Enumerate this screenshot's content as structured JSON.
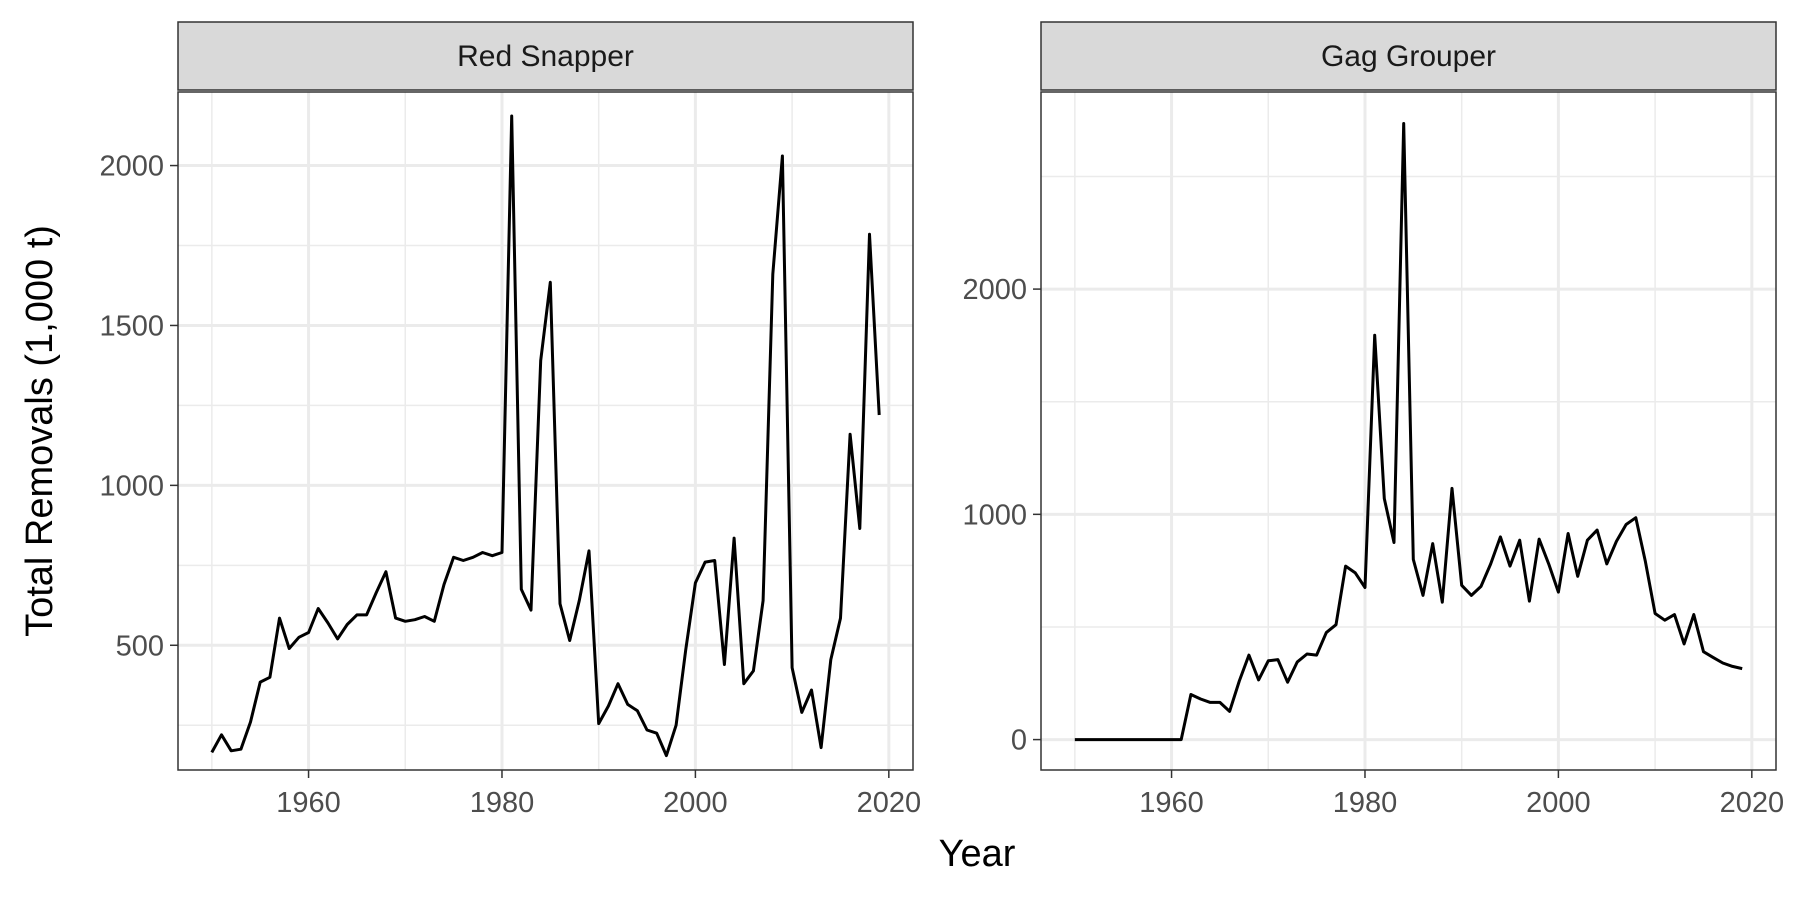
{
  "chart_data": {
    "type": "line",
    "xlabel": "Year",
    "ylabel": "Total Removals (1,000 t)",
    "grid": true,
    "facets": [
      {
        "title": "Red Snapper",
        "xlim": [
          1946.5,
          2022.5
        ],
        "ylim": [
          110,
          2230
        ],
        "x_ticks": [
          1960,
          1980,
          2000,
          2020
        ],
        "y_ticks": [
          500,
          1000,
          1500,
          2000
        ],
        "series": [
          {
            "x": [
              1950,
              1951,
              1952,
              1953,
              1954,
              1955,
              1956,
              1957,
              1958,
              1959,
              1960,
              1961,
              1962,
              1963,
              1964,
              1965,
              1966,
              1967,
              1968,
              1969,
              1970,
              1971,
              1972,
              1973,
              1974,
              1975,
              1976,
              1977,
              1978,
              1979,
              1980,
              1981,
              1982,
              1983,
              1984,
              1985,
              1986,
              1987,
              1988,
              1989,
              1990,
              1991,
              1992,
              1993,
              1994,
              1995,
              1996,
              1997,
              1998,
              1999,
              2000,
              2001,
              2002,
              2003,
              2004,
              2005,
              2006,
              2007,
              2008,
              2009,
              2010,
              2011,
              2012,
              2013,
              2014,
              2015,
              2016,
              2017,
              2018,
              2019
            ],
            "y": [
              165,
              220,
              170,
              175,
              260,
              385,
              400,
              585,
              490,
              525,
              540,
              615,
              570,
              520,
              565,
              595,
              595,
              665,
              730,
              585,
              575,
              580,
              590,
              575,
              690,
              775,
              765,
              775,
              790,
              780,
              790,
              2155,
              675,
              610,
              1390,
              1635,
              630,
              515,
              640,
              795,
              255,
              310,
              380,
              315,
              295,
              235,
              225,
              155,
              250,
              485,
              695,
              760,
              765,
              440,
              835,
              380,
              420,
              640,
              1660,
              2030,
              430,
              290,
              360,
              180,
              455,
              585,
              1160,
              865,
              1785,
              1220
            ]
          }
        ]
      },
      {
        "title": "Gag Grouper",
        "xlim": [
          1946.5,
          2022.5
        ],
        "ylim": [
          -135,
          2875
        ],
        "x_ticks": [
          1960,
          1980,
          2000,
          2020
        ],
        "y_ticks": [
          0,
          1000,
          2000
        ],
        "series": [
          {
            "x": [
              1950,
              1951,
              1952,
              1953,
              1954,
              1955,
              1956,
              1957,
              1958,
              1959,
              1960,
              1961,
              1962,
              1963,
              1964,
              1965,
              1966,
              1967,
              1968,
              1969,
              1970,
              1971,
              1972,
              1973,
              1974,
              1975,
              1976,
              1977,
              1978,
              1979,
              1980,
              1981,
              1982,
              1983,
              1984,
              1985,
              1986,
              1987,
              1988,
              1989,
              1990,
              1991,
              1992,
              1993,
              1994,
              1995,
              1996,
              1997,
              1998,
              1999,
              2000,
              2001,
              2002,
              2003,
              2004,
              2005,
              2006,
              2007,
              2008,
              2009,
              2010,
              2011,
              2012,
              2013,
              2014,
              2015,
              2016,
              2017,
              2018,
              2019
            ],
            "y": [
              0,
              0,
              0,
              0,
              0,
              0,
              0,
              0,
              0,
              0,
              0,
              0,
              200,
              180,
              165,
              165,
              125,
              260,
              375,
              265,
              350,
              355,
              255,
              345,
              380,
              375,
              475,
              510,
              770,
              740,
              675,
              1795,
              1070,
              875,
              2735,
              800,
              640,
              870,
              610,
              1115,
              685,
              640,
              680,
              780,
              900,
              770,
              885,
              615,
              890,
              780,
              655,
              915,
              725,
              885,
              930,
              780,
              880,
              955,
              985,
              790,
              560,
              530,
              555,
              425,
              555,
              390,
              365,
              340,
              325,
              315
            ]
          }
        ]
      }
    ]
  }
}
